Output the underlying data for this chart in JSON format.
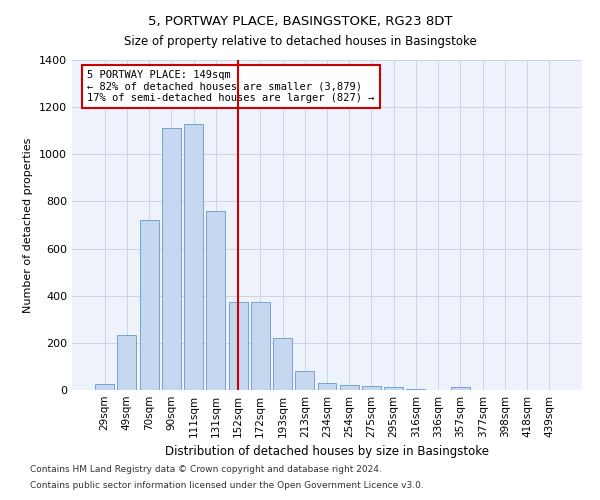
{
  "title1": "5, PORTWAY PLACE, BASINGSTOKE, RG23 8DT",
  "title2": "Size of property relative to detached houses in Basingstoke",
  "xlabel": "Distribution of detached houses by size in Basingstoke",
  "ylabel": "Number of detached properties",
  "categories": [
    "29sqm",
    "49sqm",
    "70sqm",
    "90sqm",
    "111sqm",
    "131sqm",
    "152sqm",
    "172sqm",
    "193sqm",
    "213sqm",
    "234sqm",
    "254sqm",
    "275sqm",
    "295sqm",
    "316sqm",
    "336sqm",
    "357sqm",
    "377sqm",
    "398sqm",
    "418sqm",
    "439sqm"
  ],
  "values": [
    25,
    235,
    720,
    1110,
    1130,
    760,
    375,
    375,
    220,
    80,
    30,
    22,
    18,
    12,
    5,
    0,
    12,
    0,
    0,
    0,
    0
  ],
  "bar_color": "#c5d8f0",
  "bar_edge_color": "#6699cc",
  "vline_color": "#cc0000",
  "annotation_text": "5 PORTWAY PLACE: 149sqm\n← 82% of detached houses are smaller (3,879)\n17% of semi-detached houses are larger (827) →",
  "annotation_box_color": "#ffffff",
  "annotation_box_edge": "#cc0000",
  "ylim": [
    0,
    1400
  ],
  "yticks": [
    0,
    200,
    400,
    600,
    800,
    1000,
    1200,
    1400
  ],
  "footer1": "Contains HM Land Registry data © Crown copyright and database right 2024.",
  "footer2": "Contains public sector information licensed under the Open Government Licence v3.0.",
  "plot_bg_color": "#eef2fb"
}
